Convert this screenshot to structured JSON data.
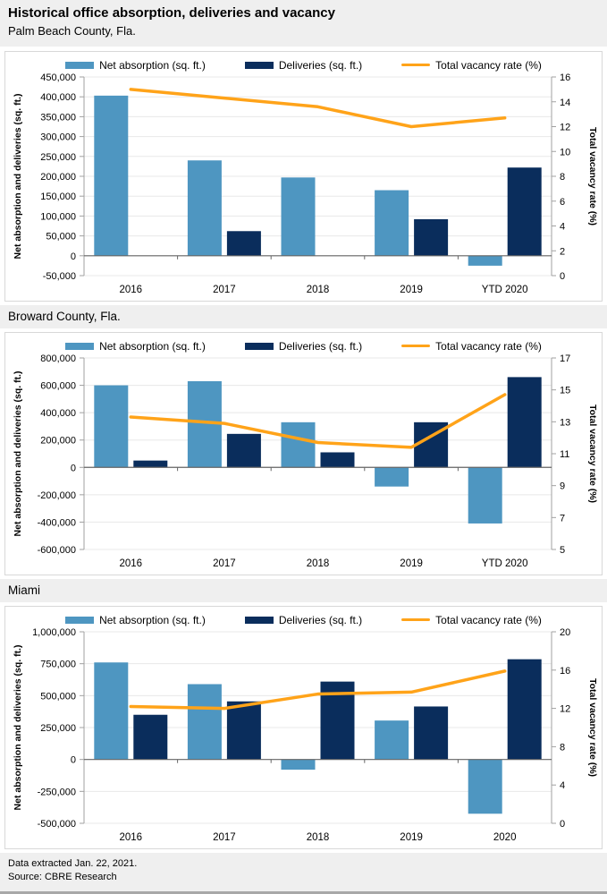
{
  "page": {
    "title": "Historical office absorption, deliveries and vacancy",
    "footer": {
      "line1": "Data extracted Jan. 22, 2021.",
      "line2": "Source: CBRE Research"
    }
  },
  "colors": {
    "net_absorption": "#4E96C1",
    "deliveries": "#0A2D5C",
    "vacancy_line": "#FFA319",
    "section_band_bg": "#EFEFEF",
    "panel_border": "#D8D8D8",
    "gridline": "#E8E8E8",
    "axis_line": "#A0A0A0",
    "zero_line": "#666666"
  },
  "chart_data": [
    {
      "type": "bar",
      "section_title": "Palm Beach County, Fla.",
      "categories": [
        "2016",
        "2017",
        "2018",
        "2019",
        "YTD 2020"
      ],
      "series": [
        {
          "name": "Net absorption (sq. ft.)",
          "type": "bar",
          "axis": "left",
          "color_key": "net_absorption",
          "values": [
            403000,
            240000,
            197000,
            165000,
            -25000
          ]
        },
        {
          "name": "Deliveries (sq. ft.)",
          "type": "bar",
          "axis": "left",
          "color_key": "deliveries",
          "values": [
            0,
            62000,
            0,
            92000,
            222000
          ]
        },
        {
          "name": "Total vacancy rate (%)",
          "type": "line",
          "axis": "right",
          "color_key": "vacancy_line",
          "values": [
            15.0,
            14.3,
            13.6,
            12.0,
            12.7
          ]
        }
      ],
      "left_axis": {
        "label": "Net absorption and deliveries (sq. ft.)",
        "min": -50000,
        "max": 450000,
        "step": 50000
      },
      "right_axis": {
        "label": "Total vacancy rate (%)",
        "min": 0,
        "max": 16,
        "step": 2
      },
      "grid": true,
      "legend_position": "top"
    },
    {
      "type": "bar",
      "section_title": "Broward County, Fla.",
      "categories": [
        "2016",
        "2017",
        "2018",
        "2019",
        "YTD 2020"
      ],
      "series": [
        {
          "name": "Net absorption (sq. ft.)",
          "type": "bar",
          "axis": "left",
          "color_key": "net_absorption",
          "values": [
            600000,
            630000,
            330000,
            -140000,
            -410000
          ]
        },
        {
          "name": "Deliveries (sq. ft.)",
          "type": "bar",
          "axis": "left",
          "color_key": "deliveries",
          "values": [
            50000,
            245000,
            110000,
            330000,
            660000
          ]
        },
        {
          "name": "Total vacancy rate (%)",
          "type": "line",
          "axis": "right",
          "color_key": "vacancy_line",
          "values": [
            13.3,
            12.9,
            11.7,
            11.4,
            14.7
          ]
        }
      ],
      "left_axis": {
        "label": "Net absorption and deliveries (sq. ft.)",
        "min": -600000,
        "max": 800000,
        "step": 200000
      },
      "right_axis": {
        "label": "Total vacancy rate (%)",
        "min": 5,
        "max": 17,
        "step": 2
      },
      "grid": true,
      "legend_position": "top"
    },
    {
      "type": "bar",
      "section_title": "Miami",
      "categories": [
        "2016",
        "2017",
        "2018",
        "2019",
        "2020"
      ],
      "series": [
        {
          "name": "Net absorption (sq. ft.)",
          "type": "bar",
          "axis": "left",
          "color_key": "net_absorption",
          "values": [
            760000,
            590000,
            -80000,
            305000,
            -425000
          ]
        },
        {
          "name": "Deliveries (sq. ft.)",
          "type": "bar",
          "axis": "left",
          "color_key": "deliveries",
          "values": [
            350000,
            455000,
            610000,
            415000,
            785000
          ]
        },
        {
          "name": "Total vacancy rate (%)",
          "type": "line",
          "axis": "right",
          "color_key": "vacancy_line",
          "values": [
            12.2,
            12.0,
            13.5,
            13.7,
            15.9
          ]
        }
      ],
      "left_axis": {
        "label": "Net absorption and deliveries (sq. ft.)",
        "min": -500000,
        "max": 1000000,
        "step": 250000
      },
      "right_axis": {
        "label": "Total vacancy rate (%)",
        "min": 0,
        "max": 20,
        "step": 4
      },
      "grid": true,
      "legend_position": "top"
    }
  ]
}
